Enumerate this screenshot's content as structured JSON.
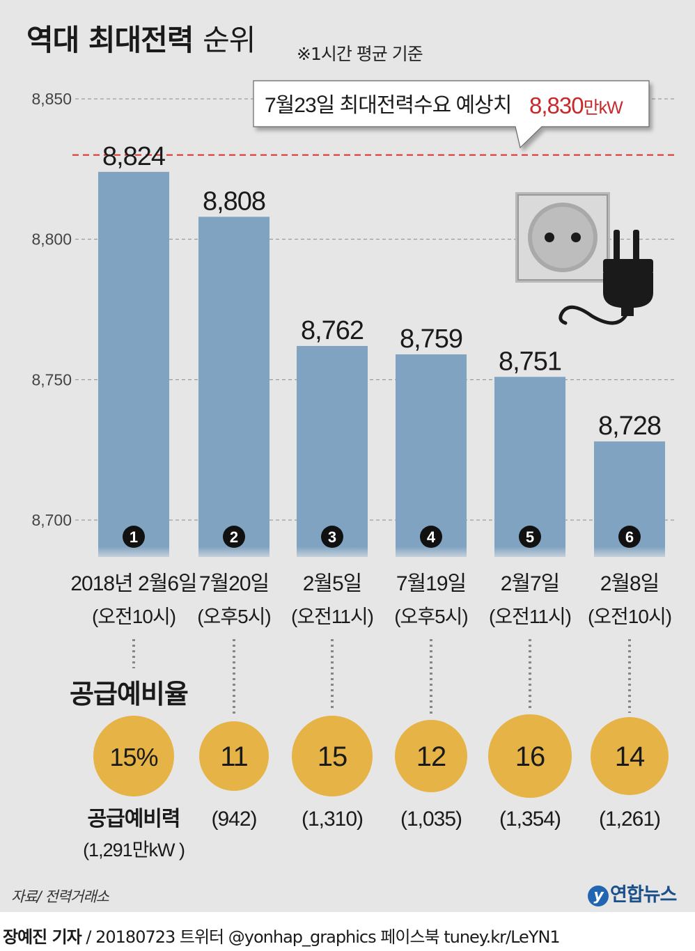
{
  "header": {
    "title_bold": "역대 최대전력",
    "title_light": "순위",
    "note": "※1시간 평균 기준"
  },
  "chart_data": {
    "type": "bar",
    "title": "역대 최대전력 순위",
    "categories": [
      {
        "rank": "1",
        "date": "2018년 2월6일",
        "time": "(오전10시)"
      },
      {
        "rank": "2",
        "date": "7월20일",
        "time": "(오후5시)"
      },
      {
        "rank": "3",
        "date": "2월5일",
        "time": "(오전11시)"
      },
      {
        "rank": "4",
        "date": "7월19일",
        "time": "(오후5시)"
      },
      {
        "rank": "5",
        "date": "2월7일",
        "time": "(오전11시)"
      },
      {
        "rank": "6",
        "date": "2월8일",
        "time": "(오전10시)"
      }
    ],
    "values": [
      8824,
      8808,
      8762,
      8759,
      8751,
      8728
    ],
    "value_labels": [
      "8,824",
      "8,808",
      "8,762",
      "8,759",
      "8,751",
      "8,728"
    ],
    "yticks": [
      8700,
      8750,
      8800,
      8850
    ],
    "ytick_labels": [
      "8,700",
      "8,750",
      "8,800",
      "8,850"
    ],
    "ylim": [
      8690,
      8850
    ],
    "grid": true,
    "reference_line": {
      "value": 8830,
      "label": "7월23일 최대전력수요 예상치",
      "value_label": "8,830",
      "unit": "만kW"
    },
    "bar_color": "#7fa3c1",
    "reference_color": "#d9302a"
  },
  "reserve": {
    "title": "공급예비율",
    "rates": [
      "15%",
      "11",
      "15",
      "12",
      "16",
      "14"
    ],
    "rate_values": [
      15,
      11,
      15,
      12,
      16,
      14
    ],
    "power_title": "공급예비력",
    "power_first": "(1,291만kW )",
    "powers": [
      "",
      "(942)",
      "(1,310)",
      "(1,035)",
      "(1,354)",
      "(1,261)"
    ],
    "circle_color": "#e6b346"
  },
  "source": "자료/ 전력거래소",
  "brand": {
    "logo": "y",
    "name": "연합뉴스"
  },
  "footer": {
    "author": "장예진 기자",
    "rest": " / 20180723 트위터 @yonhap_graphics  페이스북 tuney.kr/LeYN1"
  },
  "icons": [
    "power-outlet-icon",
    "plug-icon"
  ]
}
